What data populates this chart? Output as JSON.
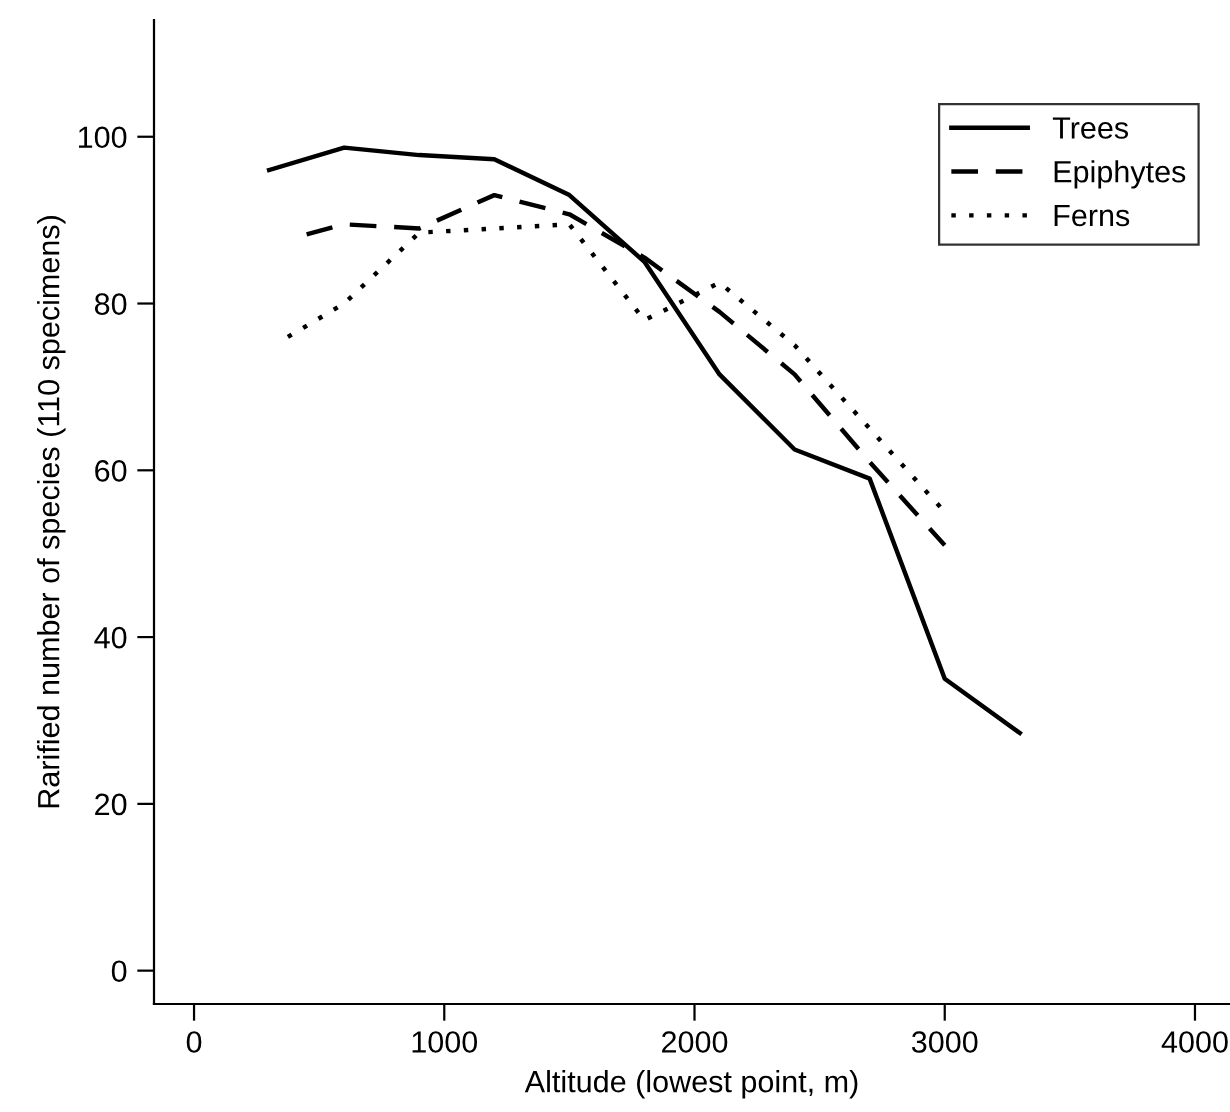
{
  "chart_data": {
    "type": "line",
    "xlabel": "Altitude (lowest point, m)",
    "ylabel": "Rarified number of species (110 specimens)",
    "xlim": [
      -160,
      4140
    ],
    "ylim": [
      -4,
      114
    ],
    "xticks": [
      0,
      1000,
      2000,
      3000,
      4000
    ],
    "yticks": [
      0,
      20,
      40,
      60,
      80,
      100
    ],
    "grid": false,
    "legend": "top right",
    "marker": "none",
    "series": [
      {
        "name": "Trees",
        "color": "#000000",
        "line_style": "solid",
        "x": [
          300,
          600,
          900,
          1200,
          1500,
          1800,
          2100,
          2400,
          2700,
          3000,
          3300
        ],
        "values": [
          96,
          98.7,
          97.8,
          97.3,
          93,
          85,
          71.5,
          62.5,
          59,
          35,
          28.5
        ]
      },
      {
        "name": "Epiphytes",
        "color": "#000000",
        "line_style": "dashed",
        "x": [
          450,
          600,
          900,
          1200,
          1500,
          1800,
          2100,
          2400,
          2700,
          3000
        ],
        "values": [
          88.3,
          89.5,
          89,
          93,
          90.7,
          85.5,
          79,
          71.5,
          61,
          51
        ]
      },
      {
        "name": "Ferns",
        "color": "#000000",
        "line_style": "dotted",
        "x": [
          375,
          600,
          900,
          1200,
          1500,
          1800,
          2100,
          2400,
          2700,
          3000
        ],
        "values": [
          76,
          80,
          88.5,
          89,
          89.5,
          78,
          82.5,
          75,
          65,
          55
        ]
      }
    ]
  }
}
